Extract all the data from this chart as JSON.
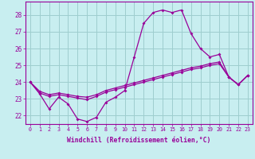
{
  "x": [
    0,
    1,
    2,
    3,
    4,
    5,
    6,
    7,
    8,
    9,
    10,
    11,
    12,
    13,
    14,
    15,
    16,
    17,
    18,
    19,
    20,
    21,
    22,
    23
  ],
  "line1": [
    24.0,
    23.3,
    22.4,
    23.1,
    22.7,
    21.8,
    21.65,
    21.9,
    22.8,
    23.1,
    23.5,
    25.5,
    27.5,
    28.15,
    28.3,
    28.15,
    28.3,
    26.9,
    26.0,
    25.5,
    25.65,
    24.3,
    23.85,
    24.4
  ],
  "line2": [
    24.0,
    23.35,
    23.15,
    23.25,
    23.15,
    23.05,
    22.95,
    23.15,
    23.4,
    23.55,
    23.7,
    23.85,
    24.0,
    24.15,
    24.3,
    24.45,
    24.6,
    24.75,
    24.85,
    25.0,
    25.1,
    24.3,
    23.85,
    24.4
  ],
  "line3": [
    24.0,
    23.45,
    23.25,
    23.35,
    23.25,
    23.15,
    23.1,
    23.25,
    23.5,
    23.65,
    23.8,
    23.95,
    24.1,
    24.25,
    24.4,
    24.55,
    24.7,
    24.85,
    24.95,
    25.1,
    25.2,
    24.3,
    23.85,
    24.4
  ],
  "bg_color": "#c8eef0",
  "line_color": "#990099",
  "grid_color": "#9ecece",
  "ylabel_values": [
    22,
    23,
    24,
    25,
    26,
    27,
    28
  ],
  "xlabel_label": "Windchill (Refroidissement éolien,°C)",
  "xlim": [
    -0.5,
    23.5
  ],
  "ylim": [
    21.5,
    28.8
  ]
}
